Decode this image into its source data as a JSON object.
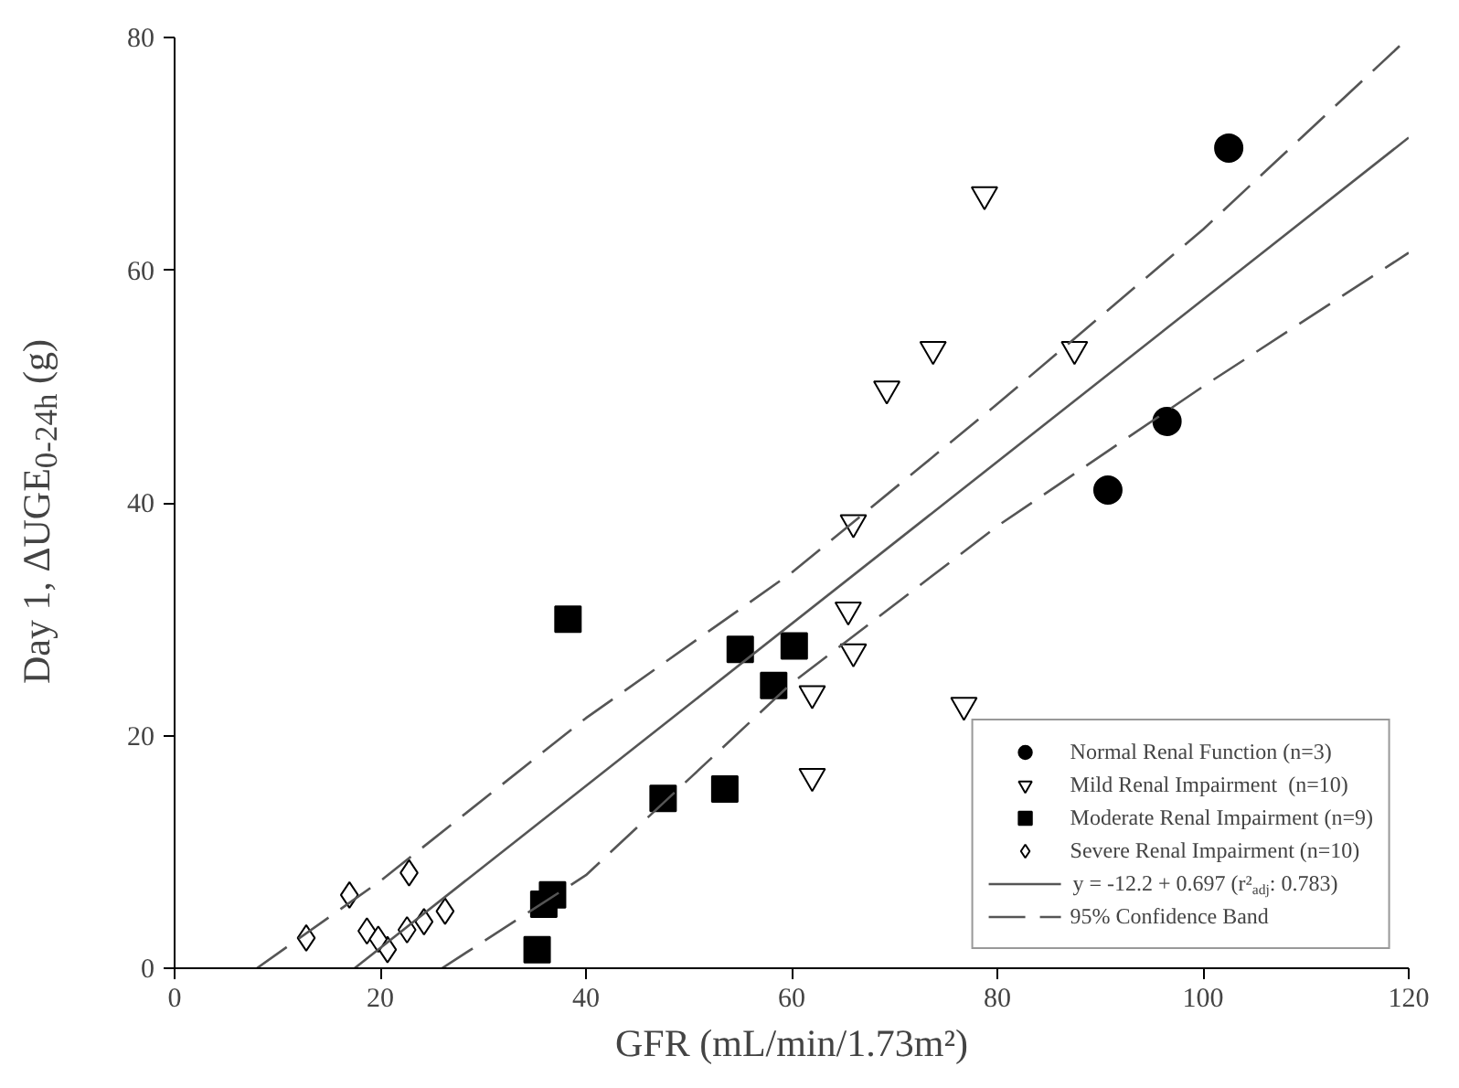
{
  "chart_data": {
    "type": "scatter",
    "xlabel": "GFR (mL/min/1.73m²)",
    "ylabel": "Day 1, ΔUGE$_{0-24h}$ (g)",
    "xlim": [
      0,
      120
    ],
    "ylim": [
      0,
      80
    ],
    "xticks": [
      0,
      20,
      40,
      60,
      80,
      100,
      120
    ],
    "yticks": [
      0,
      20,
      40,
      60,
      80
    ],
    "grid": false,
    "legend": "bottom right",
    "series": [
      {
        "name": "Normal Renal Function (n=3)",
        "color": "#000000",
        "marker": "circle",
        "x": [
          102.5,
          96.5,
          90.75
        ],
        "values": [
          70.5,
          47,
          41.1
        ]
      },
      {
        "name": "Mild Renal Impairment  (n=10)",
        "color": "#ffffff",
        "marker": "triangle",
        "x": [
          78.75,
          87.5,
          73.75,
          69.25,
          66,
          65.5,
          66,
          62,
          62,
          76.75
        ],
        "values": [
          66.5,
          53.2,
          53.2,
          49.8,
          38.3,
          30.8,
          27.2,
          23.6,
          16.5,
          22.6
        ]
      },
      {
        "name": "Moderate Renal Impairment (n=9)",
        "color": "#000000",
        "marker": "square",
        "x": [
          38.25,
          60.25,
          55,
          58.25,
          47.5,
          53.5,
          36.75,
          35.9,
          35.25
        ],
        "values": [
          30,
          27.7,
          27.4,
          24.3,
          14.6,
          15.4,
          6.3,
          5.5,
          1.6
        ]
      },
      {
        "name": "Severe Renal Impairment (n=10)",
        "color": "#ffffff",
        "marker": "diamond",
        "x": [
          12.8,
          17,
          22.8,
          18.7,
          20.7,
          19.8,
          22.6,
          24.25,
          26.3
        ],
        "values": [
          2.6,
          6.3,
          8.2,
          3.2,
          1.6,
          2.5,
          3.3,
          4.0,
          4.9
        ]
      },
      {
        "name": "y = -12.2 + 0.697 (r²$_{adj}$: 0.783)",
        "type": "line",
        "line_style": "solid",
        "color": "#555555",
        "x": [
          17.5,
          120
        ],
        "values": [
          0,
          71.4
        ]
      },
      {
        "name": "95% Confidence Band",
        "type": "line",
        "line_style": "dashed",
        "color": "#555555",
        "x": [
          8,
          20,
          40,
          60,
          80,
          100,
          120
        ],
        "values": [
          0,
          7.5,
          21.5,
          34,
          48.5,
          63.5,
          80
        ]
      },
      {
        "type": "line",
        "line_style": "dashed",
        "color": "#555555",
        "x": [
          26,
          40,
          60,
          80,
          100,
          120
        ],
        "values": [
          0,
          8,
          24.5,
          38,
          50,
          61.5
        ]
      }
    ]
  }
}
